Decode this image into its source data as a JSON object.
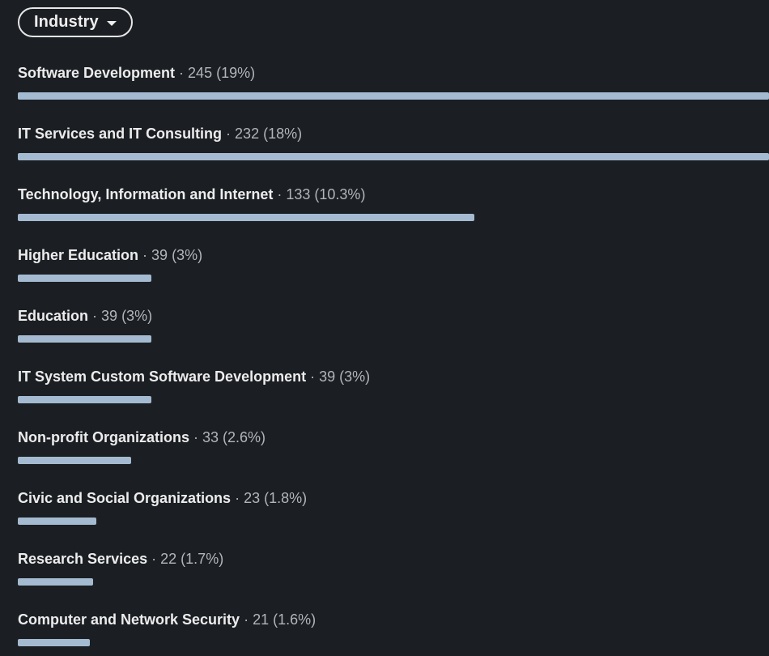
{
  "filter": {
    "label": "Industry",
    "caret_icon": "caret-down-icon"
  },
  "industries": [
    {
      "name": "Software Development",
      "count": "245",
      "percent": "(19%)",
      "fill": 1.0
    },
    {
      "name": "IT Services and IT Consulting",
      "count": "232",
      "percent": "(18%)",
      "fill": 1.0
    },
    {
      "name": "Technology, Information and Internet",
      "count": "133",
      "percent": "(10.3%)",
      "fill": 0.608
    },
    {
      "name": "Higher Education",
      "count": "39",
      "percent": "(3%)",
      "fill": 0.178
    },
    {
      "name": "Education",
      "count": "39",
      "percent": "(3%)",
      "fill": 0.178
    },
    {
      "name": "IT System Custom Software Development",
      "count": "39",
      "percent": "(3%)",
      "fill": 0.178
    },
    {
      "name": "Non-profit Organizations",
      "count": "33",
      "percent": "(2.6%)",
      "fill": 0.151
    },
    {
      "name": "Civic and Social Organizations",
      "count": "23",
      "percent": "(1.8%)",
      "fill": 0.105
    },
    {
      "name": "Research Services",
      "count": "22",
      "percent": "(1.7%)",
      "fill": 0.1
    },
    {
      "name": "Computer and Network Security",
      "count": "21",
      "percent": "(1.6%)",
      "fill": 0.096
    }
  ],
  "colors": {
    "background": "#1b1f23",
    "bar": "#a4bad0"
  }
}
